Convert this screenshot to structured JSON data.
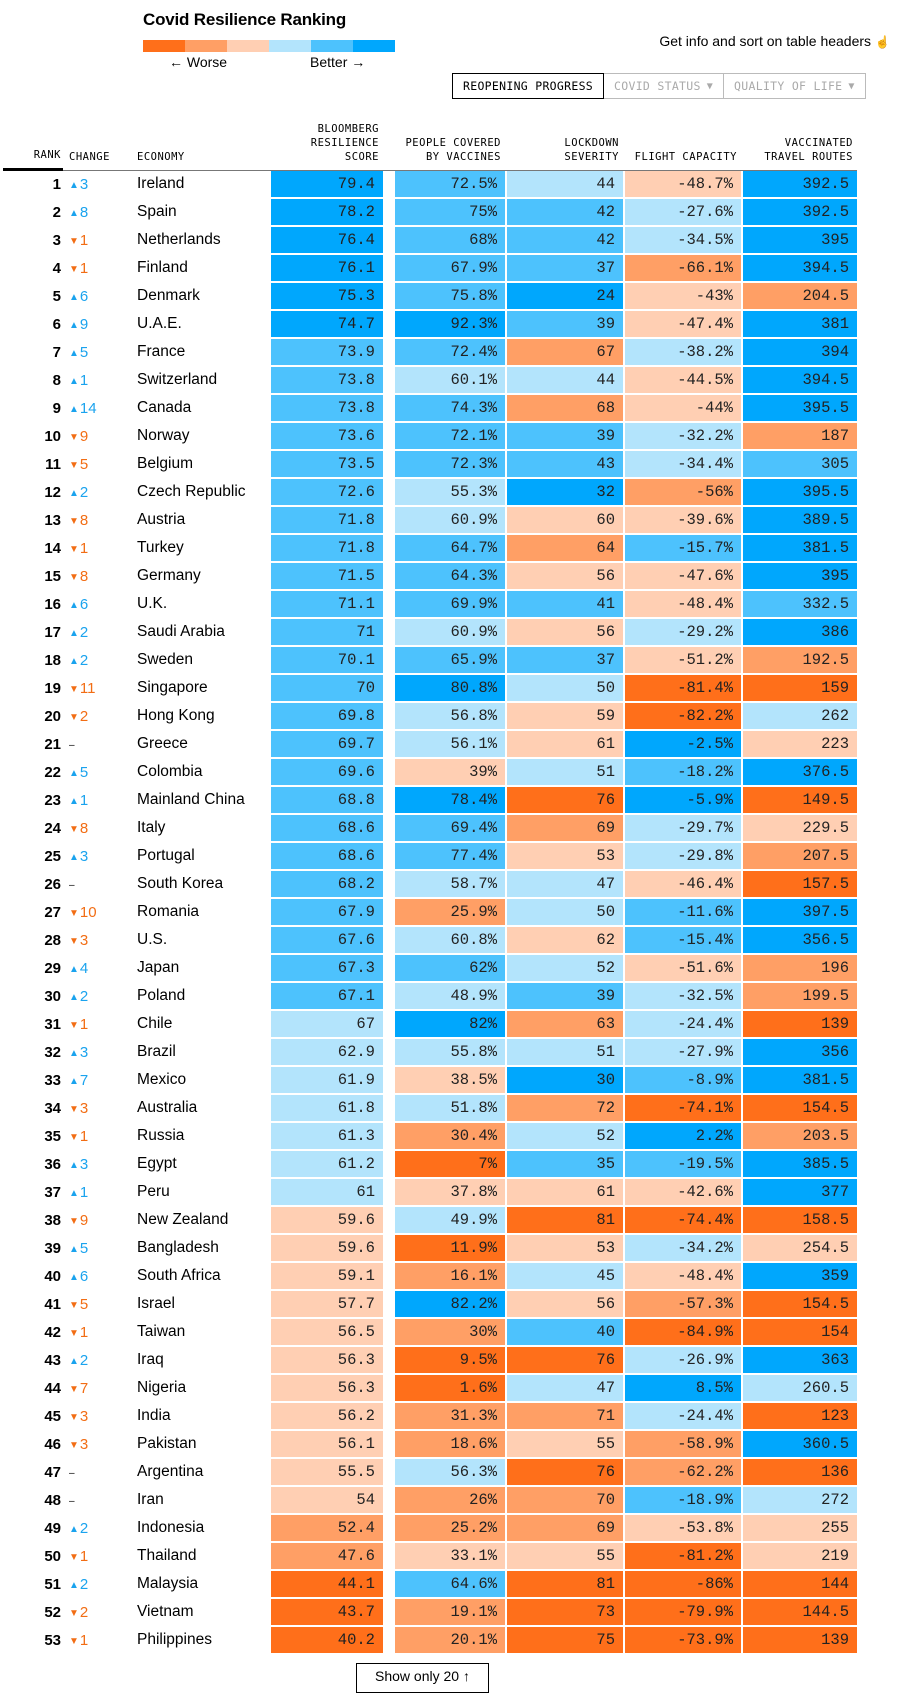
{
  "title": "Covid Resilience Ranking",
  "legend": {
    "worse_label": "← Worse",
    "better_label": "Better →",
    "colors": [
      "#ff6f1a",
      "#ff9f65",
      "#ffcfb3",
      "#b3e4fc",
      "#4dc2fd",
      "#00a7fd"
    ]
  },
  "hint": {
    "text": "Get info and sort on table headers",
    "icon": "pointer-hand-icon",
    "glyph": "☝"
  },
  "tabs": [
    {
      "label": "REOPENING PROGRESS",
      "active": true,
      "caret": ""
    },
    {
      "label": "COVID STATUS",
      "active": false,
      "caret": "▼"
    },
    {
      "label": "QUALITY OF LIFE",
      "active": false,
      "caret": "▼"
    }
  ],
  "columns": {
    "rank": "RANK",
    "change": "CHANGE",
    "economy": "ECONOMY",
    "score": [
      "BLOOMBERG",
      "RESILIENCE",
      "SCORE"
    ],
    "vaccines": [
      "PEOPLE COVERED",
      "BY VACCINES"
    ],
    "lockdown": [
      "LOCKDOWN",
      "SEVERITY"
    ],
    "flight": [
      "FLIGHT CAPACITY"
    ],
    "travel": [
      "VACCINATED",
      "TRAVEL ROUTES"
    ]
  },
  "arrows": {
    "up": "▲",
    "down": "▼",
    "flat": "–"
  },
  "rows": [
    {
      "rank": "1",
      "dir": "up",
      "change": "3",
      "economy": "Ireland",
      "score": "79.4",
      "vacc": "72.5%",
      "lock": "44",
      "flight": "-48.7%",
      "travel": "392.5",
      "lv": [
        5,
        4,
        3,
        2,
        5
      ]
    },
    {
      "rank": "2",
      "dir": "up",
      "change": "8",
      "economy": "Spain",
      "score": "78.2",
      "vacc": "75%",
      "lock": "42",
      "flight": "-27.6%",
      "travel": "392.5",
      "lv": [
        5,
        4,
        4,
        3,
        5
      ]
    },
    {
      "rank": "3",
      "dir": "down",
      "change": "1",
      "economy": "Netherlands",
      "score": "76.4",
      "vacc": "68%",
      "lock": "42",
      "flight": "-34.5%",
      "travel": "395",
      "lv": [
        5,
        4,
        4,
        3,
        5
      ]
    },
    {
      "rank": "4",
      "dir": "down",
      "change": "1",
      "economy": "Finland",
      "score": "76.1",
      "vacc": "67.9%",
      "lock": "37",
      "flight": "-66.1%",
      "travel": "394.5",
      "lv": [
        5,
        4,
        4,
        1,
        5
      ]
    },
    {
      "rank": "5",
      "dir": "up",
      "change": "6",
      "economy": "Denmark",
      "score": "75.3",
      "vacc": "75.8%",
      "lock": "24",
      "flight": "-43%",
      "travel": "204.5",
      "lv": [
        5,
        4,
        5,
        2,
        1
      ]
    },
    {
      "rank": "6",
      "dir": "up",
      "change": "9",
      "economy": "U.A.E.",
      "score": "74.7",
      "vacc": "92.3%",
      "lock": "39",
      "flight": "-47.4%",
      "travel": "381",
      "lv": [
        5,
        5,
        4,
        2,
        5
      ]
    },
    {
      "rank": "7",
      "dir": "up",
      "change": "5",
      "economy": "France",
      "score": "73.9",
      "vacc": "72.4%",
      "lock": "67",
      "flight": "-38.2%",
      "travel": "394",
      "lv": [
        4,
        4,
        1,
        3,
        5
      ]
    },
    {
      "rank": "8",
      "dir": "up",
      "change": "1",
      "economy": "Switzerland",
      "score": "73.8",
      "vacc": "60.1%",
      "lock": "44",
      "flight": "-44.5%",
      "travel": "394.5",
      "lv": [
        4,
        3,
        3,
        2,
        5
      ]
    },
    {
      "rank": "9",
      "dir": "up",
      "change": "14",
      "economy": "Canada",
      "score": "73.8",
      "vacc": "74.3%",
      "lock": "68",
      "flight": "-44%",
      "travel": "395.5",
      "lv": [
        4,
        4,
        1,
        2,
        5
      ]
    },
    {
      "rank": "10",
      "dir": "down",
      "change": "9",
      "economy": "Norway",
      "score": "73.6",
      "vacc": "72.1%",
      "lock": "39",
      "flight": "-32.2%",
      "travel": "187",
      "lv": [
        4,
        4,
        4,
        3,
        1
      ]
    },
    {
      "rank": "11",
      "dir": "down",
      "change": "5",
      "economy": "Belgium",
      "score": "73.5",
      "vacc": "72.3%",
      "lock": "43",
      "flight": "-34.4%",
      "travel": "305",
      "lv": [
        4,
        4,
        4,
        3,
        4
      ]
    },
    {
      "rank": "12",
      "dir": "up",
      "change": "2",
      "economy": "Czech Republic",
      "score": "72.6",
      "vacc": "55.3%",
      "lock": "32",
      "flight": "-56%",
      "travel": "395.5",
      "lv": [
        4,
        3,
        5,
        1,
        5
      ]
    },
    {
      "rank": "13",
      "dir": "down",
      "change": "8",
      "economy": "Austria",
      "score": "71.8",
      "vacc": "60.9%",
      "lock": "60",
      "flight": "-39.6%",
      "travel": "389.5",
      "lv": [
        4,
        3,
        2,
        2,
        5
      ]
    },
    {
      "rank": "14",
      "dir": "down",
      "change": "1",
      "economy": "Turkey",
      "score": "71.8",
      "vacc": "64.7%",
      "lock": "64",
      "flight": "-15.7%",
      "travel": "381.5",
      "lv": [
        4,
        4,
        1,
        4,
        5
      ]
    },
    {
      "rank": "15",
      "dir": "down",
      "change": "8",
      "economy": "Germany",
      "score": "71.5",
      "vacc": "64.3%",
      "lock": "56",
      "flight": "-47.6%",
      "travel": "395",
      "lv": [
        4,
        4,
        2,
        2,
        5
      ]
    },
    {
      "rank": "16",
      "dir": "up",
      "change": "6",
      "economy": "U.K.",
      "score": "71.1",
      "vacc": "69.9%",
      "lock": "41",
      "flight": "-48.4%",
      "travel": "332.5",
      "lv": [
        4,
        4,
        4,
        2,
        4
      ]
    },
    {
      "rank": "17",
      "dir": "up",
      "change": "2",
      "economy": "Saudi Arabia",
      "score": "71",
      "vacc": "60.9%",
      "lock": "56",
      "flight": "-29.2%",
      "travel": "386",
      "lv": [
        4,
        3,
        2,
        3,
        5
      ]
    },
    {
      "rank": "18",
      "dir": "up",
      "change": "2",
      "economy": "Sweden",
      "score": "70.1",
      "vacc": "65.9%",
      "lock": "37",
      "flight": "-51.2%",
      "travel": "192.5",
      "lv": [
        4,
        4,
        4,
        2,
        1
      ]
    },
    {
      "rank": "19",
      "dir": "down",
      "change": "11",
      "economy": "Singapore",
      "score": "70",
      "vacc": "80.8%",
      "lock": "50",
      "flight": "-81.4%",
      "travel": "159",
      "lv": [
        4,
        5,
        3,
        0,
        0
      ]
    },
    {
      "rank": "20",
      "dir": "down",
      "change": "2",
      "economy": "Hong Kong",
      "score": "69.8",
      "vacc": "56.8%",
      "lock": "59",
      "flight": "-82.2%",
      "travel": "262",
      "lv": [
        4,
        3,
        2,
        0,
        3
      ]
    },
    {
      "rank": "21",
      "dir": "flat",
      "change": "",
      "economy": "Greece",
      "score": "69.7",
      "vacc": "56.1%",
      "lock": "61",
      "flight": "-2.5%",
      "travel": "223",
      "lv": [
        4,
        3,
        2,
        5,
        2
      ]
    },
    {
      "rank": "22",
      "dir": "up",
      "change": "5",
      "economy": "Colombia",
      "score": "69.6",
      "vacc": "39%",
      "lock": "51",
      "flight": "-18.2%",
      "travel": "376.5",
      "lv": [
        4,
        2,
        3,
        4,
        5
      ]
    },
    {
      "rank": "23",
      "dir": "up",
      "change": "1",
      "economy": "Mainland China",
      "score": "68.8",
      "vacc": "78.4%",
      "lock": "76",
      "flight": "-5.9%",
      "travel": "149.5",
      "lv": [
        4,
        5,
        0,
        5,
        0
      ]
    },
    {
      "rank": "24",
      "dir": "down",
      "change": "8",
      "economy": "Italy",
      "score": "68.6",
      "vacc": "69.4%",
      "lock": "69",
      "flight": "-29.7%",
      "travel": "229.5",
      "lv": [
        4,
        4,
        1,
        3,
        2
      ]
    },
    {
      "rank": "25",
      "dir": "up",
      "change": "3",
      "economy": "Portugal",
      "score": "68.6",
      "vacc": "77.4%",
      "lock": "53",
      "flight": "-29.8%",
      "travel": "207.5",
      "lv": [
        4,
        4,
        2,
        3,
        1
      ]
    },
    {
      "rank": "26",
      "dir": "flat",
      "change": "",
      "economy": "South Korea",
      "score": "68.2",
      "vacc": "58.7%",
      "lock": "47",
      "flight": "-46.4%",
      "travel": "157.5",
      "lv": [
        4,
        3,
        3,
        2,
        0
      ]
    },
    {
      "rank": "27",
      "dir": "down",
      "change": "10",
      "economy": "Romania",
      "score": "67.9",
      "vacc": "25.9%",
      "lock": "50",
      "flight": "-11.6%",
      "travel": "397.5",
      "lv": [
        4,
        1,
        3,
        4,
        5
      ]
    },
    {
      "rank": "28",
      "dir": "down",
      "change": "3",
      "economy": "U.S.",
      "score": "67.6",
      "vacc": "60.8%",
      "lock": "62",
      "flight": "-15.4%",
      "travel": "356.5",
      "lv": [
        4,
        3,
        2,
        4,
        5
      ]
    },
    {
      "rank": "29",
      "dir": "up",
      "change": "4",
      "economy": "Japan",
      "score": "67.3",
      "vacc": "62%",
      "lock": "52",
      "flight": "-51.6%",
      "travel": "196",
      "lv": [
        4,
        4,
        3,
        2,
        1
      ]
    },
    {
      "rank": "30",
      "dir": "up",
      "change": "2",
      "economy": "Poland",
      "score": "67.1",
      "vacc": "48.9%",
      "lock": "39",
      "flight": "-32.5%",
      "travel": "199.5",
      "lv": [
        4,
        3,
        4,
        3,
        1
      ]
    },
    {
      "rank": "31",
      "dir": "down",
      "change": "1",
      "economy": "Chile",
      "score": "67",
      "vacc": "82%",
      "lock": "63",
      "flight": "-24.4%",
      "travel": "139",
      "lv": [
        3,
        5,
        1,
        3,
        0
      ]
    },
    {
      "rank": "32",
      "dir": "up",
      "change": "3",
      "economy": "Brazil",
      "score": "62.9",
      "vacc": "55.8%",
      "lock": "51",
      "flight": "-27.9%",
      "travel": "356",
      "lv": [
        3,
        3,
        3,
        3,
        5
      ]
    },
    {
      "rank": "33",
      "dir": "up",
      "change": "7",
      "economy": "Mexico",
      "score": "61.9",
      "vacc": "38.5%",
      "lock": "30",
      "flight": "-8.9%",
      "travel": "381.5",
      "lv": [
        3,
        2,
        5,
        4,
        5
      ]
    },
    {
      "rank": "34",
      "dir": "down",
      "change": "3",
      "economy": "Australia",
      "score": "61.8",
      "vacc": "51.8%",
      "lock": "72",
      "flight": "-74.1%",
      "travel": "154.5",
      "lv": [
        3,
        3,
        1,
        0,
        0
      ]
    },
    {
      "rank": "35",
      "dir": "down",
      "change": "1",
      "economy": "Russia",
      "score": "61.3",
      "vacc": "30.4%",
      "lock": "52",
      "flight": "2.2%",
      "travel": "203.5",
      "lv": [
        3,
        1,
        3,
        5,
        1
      ]
    },
    {
      "rank": "36",
      "dir": "up",
      "change": "3",
      "economy": "Egypt",
      "score": "61.2",
      "vacc": "7%",
      "lock": "35",
      "flight": "-19.5%",
      "travel": "385.5",
      "lv": [
        3,
        0,
        4,
        4,
        5
      ]
    },
    {
      "rank": "37",
      "dir": "up",
      "change": "1",
      "economy": "Peru",
      "score": "61",
      "vacc": "37.8%",
      "lock": "61",
      "flight": "-42.6%",
      "travel": "377",
      "lv": [
        3,
        2,
        2,
        2,
        5
      ]
    },
    {
      "rank": "38",
      "dir": "down",
      "change": "9",
      "economy": "New Zealand",
      "score": "59.6",
      "vacc": "49.9%",
      "lock": "81",
      "flight": "-74.4%",
      "travel": "158.5",
      "lv": [
        2,
        3,
        0,
        0,
        0
      ]
    },
    {
      "rank": "39",
      "dir": "up",
      "change": "5",
      "economy": "Bangladesh",
      "score": "59.6",
      "vacc": "11.9%",
      "lock": "53",
      "flight": "-34.2%",
      "travel": "254.5",
      "lv": [
        2,
        0,
        2,
        3,
        2
      ]
    },
    {
      "rank": "40",
      "dir": "up",
      "change": "6",
      "economy": "South Africa",
      "score": "59.1",
      "vacc": "16.1%",
      "lock": "45",
      "flight": "-48.4%",
      "travel": "359",
      "lv": [
        2,
        1,
        3,
        2,
        5
      ]
    },
    {
      "rank": "41",
      "dir": "down",
      "change": "5",
      "economy": "Israel",
      "score": "57.7",
      "vacc": "82.2%",
      "lock": "56",
      "flight": "-57.3%",
      "travel": "154.5",
      "lv": [
        2,
        5,
        2,
        1,
        0
      ]
    },
    {
      "rank": "42",
      "dir": "down",
      "change": "1",
      "economy": "Taiwan",
      "score": "56.5",
      "vacc": "30%",
      "lock": "40",
      "flight": "-84.9%",
      "travel": "154",
      "lv": [
        2,
        1,
        4,
        0,
        0
      ]
    },
    {
      "rank": "43",
      "dir": "up",
      "change": "2",
      "economy": "Iraq",
      "score": "56.3",
      "vacc": "9.5%",
      "lock": "76",
      "flight": "-26.9%",
      "travel": "363",
      "lv": [
        2,
        0,
        0,
        3,
        5
      ]
    },
    {
      "rank": "44",
      "dir": "down",
      "change": "7",
      "economy": "Nigeria",
      "score": "56.3",
      "vacc": "1.6%",
      "lock": "47",
      "flight": "8.5%",
      "travel": "260.5",
      "lv": [
        2,
        0,
        3,
        5,
        3
      ]
    },
    {
      "rank": "45",
      "dir": "down",
      "change": "3",
      "economy": "India",
      "score": "56.2",
      "vacc": "31.3%",
      "lock": "71",
      "flight": "-24.4%",
      "travel": "123",
      "lv": [
        2,
        1,
        1,
        3,
        0
      ]
    },
    {
      "rank": "46",
      "dir": "down",
      "change": "3",
      "economy": "Pakistan",
      "score": "56.1",
      "vacc": "18.6%",
      "lock": "55",
      "flight": "-58.9%",
      "travel": "360.5",
      "lv": [
        2,
        1,
        2,
        1,
        5
      ]
    },
    {
      "rank": "47",
      "dir": "flat",
      "change": "",
      "economy": "Argentina",
      "score": "55.5",
      "vacc": "56.3%",
      "lock": "76",
      "flight": "-62.2%",
      "travel": "136",
      "lv": [
        2,
        3,
        0,
        1,
        0
      ]
    },
    {
      "rank": "48",
      "dir": "flat",
      "change": "",
      "economy": "Iran",
      "score": "54",
      "vacc": "26%",
      "lock": "70",
      "flight": "-18.9%",
      "travel": "272",
      "lv": [
        2,
        1,
        1,
        4,
        3
      ]
    },
    {
      "rank": "49",
      "dir": "up",
      "change": "2",
      "economy": "Indonesia",
      "score": "52.4",
      "vacc": "25.2%",
      "lock": "69",
      "flight": "-53.8%",
      "travel": "255",
      "lv": [
        1,
        1,
        1,
        2,
        2
      ]
    },
    {
      "rank": "50",
      "dir": "down",
      "change": "1",
      "economy": "Thailand",
      "score": "47.6",
      "vacc": "33.1%",
      "lock": "55",
      "flight": "-81.2%",
      "travel": "219",
      "lv": [
        1,
        2,
        2,
        0,
        2
      ]
    },
    {
      "rank": "51",
      "dir": "up",
      "change": "2",
      "economy": "Malaysia",
      "score": "44.1",
      "vacc": "64.6%",
      "lock": "81",
      "flight": "-86%",
      "travel": "144",
      "lv": [
        0,
        4,
        0,
        0,
        0
      ]
    },
    {
      "rank": "52",
      "dir": "down",
      "change": "2",
      "economy": "Vietnam",
      "score": "43.7",
      "vacc": "19.1%",
      "lock": "73",
      "flight": "-79.9%",
      "travel": "144.5",
      "lv": [
        0,
        1,
        0,
        0,
        0
      ]
    },
    {
      "rank": "53",
      "dir": "down",
      "change": "1",
      "economy": "Philippines",
      "score": "40.2",
      "vacc": "20.1%",
      "lock": "75",
      "flight": "-73.9%",
      "travel": "139",
      "lv": [
        0,
        1,
        0,
        0,
        0
      ]
    }
  ],
  "show_button": {
    "label": "Show only 20 ↑"
  }
}
